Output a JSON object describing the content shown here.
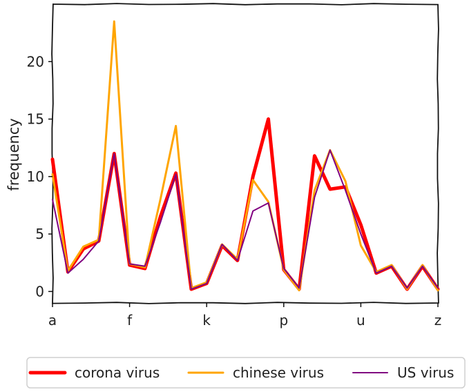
{
  "chart_data": {
    "type": "line",
    "title": "",
    "xlabel": "",
    "ylabel": "frequency",
    "x": [
      "a",
      "b",
      "c",
      "d",
      "e",
      "f",
      "g",
      "h",
      "i",
      "j",
      "k",
      "l",
      "m",
      "n",
      "o",
      "p",
      "q",
      "r",
      "s",
      "t",
      "u",
      "v",
      "w",
      "x",
      "y",
      "z"
    ],
    "x_tick_labels": [
      "a",
      "f",
      "k",
      "p",
      "u",
      "z"
    ],
    "y_ticks": [
      0,
      5,
      10,
      15,
      20
    ],
    "ylim": [
      -1,
      25
    ],
    "grid": false,
    "legend_position": "bottom",
    "series": [
      {
        "name": "corona virus",
        "color": "#ff0000",
        "values": [
          11.5,
          1.7,
          3.7,
          4.4,
          12.0,
          2.3,
          2.0,
          6.5,
          10.3,
          0.2,
          0.7,
          4.0,
          2.7,
          10.0,
          15.0,
          1.9,
          0.2,
          11.8,
          8.9,
          9.1,
          5.8,
          1.6,
          2.2,
          0.2,
          2.2,
          0.2
        ]
      },
      {
        "name": "chinese virus",
        "color": "#ffa500",
        "values": [
          10.2,
          1.8,
          3.9,
          4.5,
          23.5,
          2.4,
          2.1,
          8.0,
          14.4,
          0.3,
          0.8,
          4.1,
          2.8,
          9.7,
          7.8,
          1.9,
          0.1,
          8.8,
          12.3,
          9.6,
          4.0,
          1.7,
          2.3,
          0.2,
          2.3,
          0.1
        ]
      },
      {
        "name": "US virus",
        "color": "#800080",
        "values": [
          8.0,
          1.6,
          2.8,
          4.4,
          12.0,
          2.4,
          2.2,
          6.0,
          10.2,
          0.2,
          0.7,
          4.1,
          2.7,
          7.0,
          7.7,
          2.0,
          0.3,
          8.2,
          12.3,
          8.8,
          5.0,
          1.6,
          2.2,
          0.3,
          2.2,
          0.3
        ]
      }
    ]
  }
}
